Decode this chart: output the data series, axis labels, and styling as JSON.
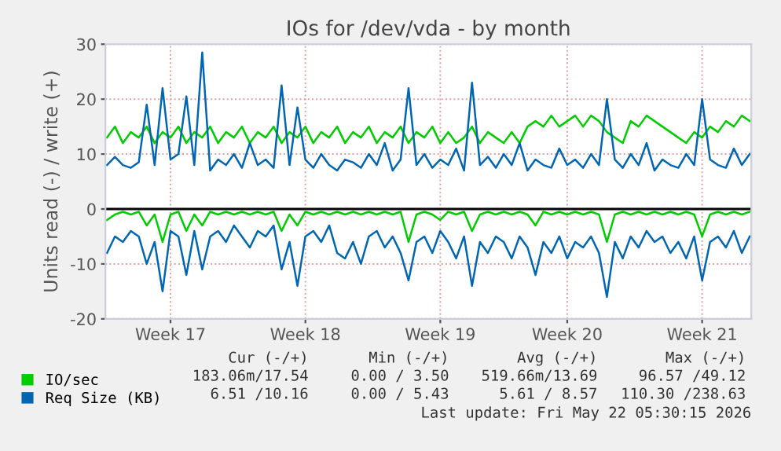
{
  "chart_data": {
    "type": "line",
    "title": "IOs for /dev/vda - by month",
    "ylabel": "Units read (-) / write (+)",
    "categories": [
      null,
      null,
      null,
      null,
      null,
      null,
      null,
      null,
      "Week 17",
      null,
      null,
      null,
      null,
      null,
      null,
      null,
      null,
      null,
      null,
      null,
      null,
      null,
      null,
      null,
      null,
      "Week 18",
      null,
      null,
      null,
      null,
      null,
      null,
      null,
      null,
      null,
      null,
      null,
      null,
      null,
      null,
      null,
      null,
      "Week 19",
      null,
      null,
      null,
      null,
      null,
      null,
      null,
      null,
      null,
      null,
      null,
      null,
      null,
      null,
      null,
      "Week 20",
      null,
      null,
      null,
      null,
      null,
      null,
      null,
      null,
      null,
      null,
      null,
      null,
      null,
      null,
      null,
      null,
      "Week 21",
      null,
      null,
      null,
      null,
      null,
      null
    ],
    "series": [
      {
        "name": "IO/sec",
        "color": "#00cc00",
        "values": [
          13,
          15,
          12,
          14,
          13,
          15,
          12,
          14,
          13,
          15,
          12,
          14,
          13,
          15,
          12,
          14,
          13,
          15,
          12,
          14,
          13,
          15,
          12,
          14,
          13,
          15,
          12,
          14,
          13,
          15,
          12,
          14,
          13,
          15,
          12,
          14,
          13,
          15,
          12,
          14,
          13,
          15,
          12,
          14,
          12,
          13,
          15,
          12,
          14,
          13,
          12,
          14,
          12,
          15,
          16,
          15,
          17,
          15,
          16,
          17,
          15,
          17,
          16,
          14,
          13,
          12,
          16,
          15,
          17,
          16,
          15,
          14,
          13,
          12,
          14,
          13,
          15,
          14,
          16,
          15,
          17,
          16
        ]
      },
      {
        "color": "#00cc00",
        "values": [
          -2,
          -1,
          -0.5,
          -1,
          -0.5,
          -3,
          -1,
          -6,
          -1,
          -0.5,
          -4,
          -1,
          -3,
          -0.5,
          -1,
          -0.5,
          -1,
          -0.5,
          -1,
          -0.5,
          -1,
          -0.5,
          -4,
          -1,
          -3,
          -0.5,
          -1,
          -0.5,
          -1,
          -0.5,
          -1,
          -0.5,
          -1,
          -0.5,
          -1,
          -0.5,
          -1,
          -0.5,
          -6,
          -1,
          -0.5,
          -1,
          -2,
          -0.5,
          -1,
          -0.5,
          -4,
          -1,
          -0.5,
          -1,
          -0.5,
          -1,
          -0.5,
          -1,
          -3,
          -0.5,
          -1,
          -0.5,
          -1,
          -0.5,
          -1,
          -0.5,
          -1,
          -6,
          -1,
          -0.5,
          -1,
          -0.5,
          -1,
          -0.5,
          -1,
          -0.5,
          -1,
          -0.5,
          -1,
          -5,
          -1,
          -0.5,
          -1,
          -0.5,
          -1,
          -0.5
        ]
      },
      {
        "name": "Req Size (KB)",
        "color": "#0066b3",
        "values": [
          8,
          9.5,
          8,
          7.5,
          8.5,
          19,
          8,
          22,
          9,
          10,
          20.5,
          8,
          28.5,
          7,
          9,
          8,
          10,
          7.5,
          12,
          8,
          9,
          7.5,
          22.5,
          8,
          18.5,
          9,
          7.5,
          10,
          8,
          7,
          9,
          8.5,
          7.5,
          10,
          8,
          12,
          7,
          9,
          22,
          8,
          10,
          7.5,
          9,
          8,
          11,
          7,
          23,
          8,
          9.5,
          7.5,
          10,
          8,
          12,
          7,
          9,
          8,
          7.5,
          11,
          8,
          9,
          7.5,
          10,
          8,
          20,
          9,
          7.5,
          10,
          8,
          12,
          7,
          9,
          8,
          7.5,
          10,
          8,
          20,
          9,
          8,
          7.5,
          11,
          8,
          10
        ]
      },
      {
        "color": "#0066b3",
        "values": [
          -8,
          -5,
          -6,
          -4,
          -5,
          -10,
          -6,
          -15,
          -4,
          -5,
          -12,
          -4,
          -11,
          -5,
          -4,
          -6,
          -3,
          -5,
          -7,
          -4,
          -5,
          -3,
          -11,
          -6,
          -14,
          -5,
          -4,
          -6,
          -3,
          -8,
          -9,
          -6,
          -10,
          -5,
          -4,
          -7,
          -5,
          -8,
          -13,
          -6,
          -5,
          -8,
          -4,
          -6,
          -9,
          -5,
          -14,
          -6,
          -8,
          -5,
          -6,
          -9,
          -5,
          -7,
          -12,
          -6,
          -8,
          -5,
          -9,
          -6,
          -7,
          -5,
          -8,
          -16,
          -6,
          -9,
          -5,
          -7,
          -4,
          -6,
          -5,
          -8,
          -6,
          -9,
          -5,
          -13,
          -6,
          -5,
          -7,
          -4,
          -8,
          -5
        ]
      }
    ],
    "ylim": [
      -20,
      30
    ],
    "yticks": [
      -20,
      -10,
      0,
      10,
      20,
      30
    ],
    "ref_lines": [
      {
        "axis": "y",
        "value": 0,
        "color": "#000000"
      }
    ],
    "grid": true,
    "legend": "bottom left",
    "annotations": [
      "Cur (-/+)",
      "Min (-/+)",
      "Avg (-/+)",
      "Max (-/+)",
      "183.06m/17.54",
      "0.00 / 3.50",
      "519.66m/13.69",
      "96.57 /49.12",
      "6.51 /10.16",
      "0.00 / 5.43",
      "5.61 / 8.57",
      "110.30 /238.63",
      "Last update: Fri May 22 05:30:15 2026"
    ]
  }
}
